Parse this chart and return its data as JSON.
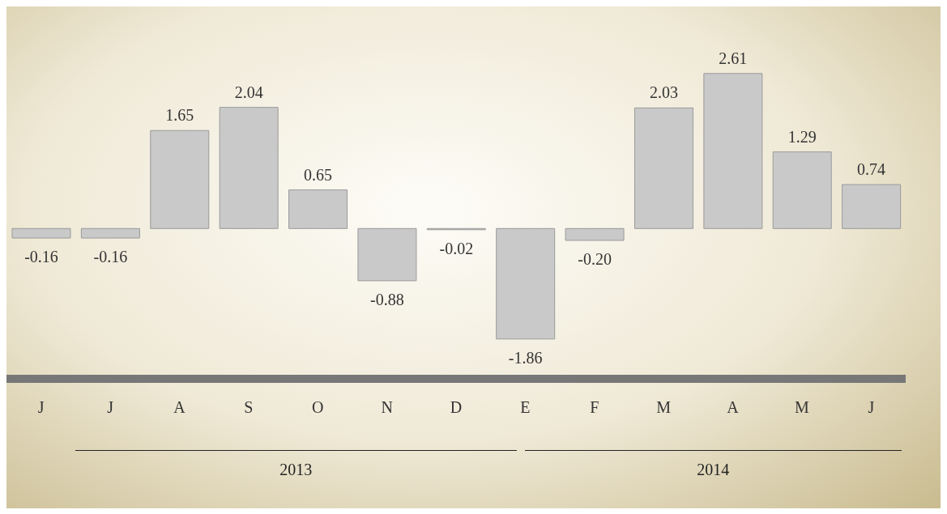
{
  "chart_data": {
    "type": "bar",
    "categories": [
      "J",
      "J",
      "A",
      "S",
      "O",
      "N",
      "D",
      "E",
      "F",
      "M",
      "A",
      "M",
      "J"
    ],
    "values": [
      -0.16,
      -0.16,
      1.65,
      2.04,
      0.65,
      -0.88,
      -0.02,
      -1.86,
      -0.2,
      2.03,
      2.61,
      1.29,
      0.74
    ],
    "value_labels": [
      "-0.16",
      "-0.16",
      "1.65",
      "2.04",
      "0.65",
      "-0.88",
      "-0.02",
      "-1.86",
      "-0.20",
      "2.03",
      "2.61",
      "1.29",
      "0.74"
    ],
    "color": "#c9c9c9",
    "annotations": [
      "2013",
      "2014"
    ]
  }
}
